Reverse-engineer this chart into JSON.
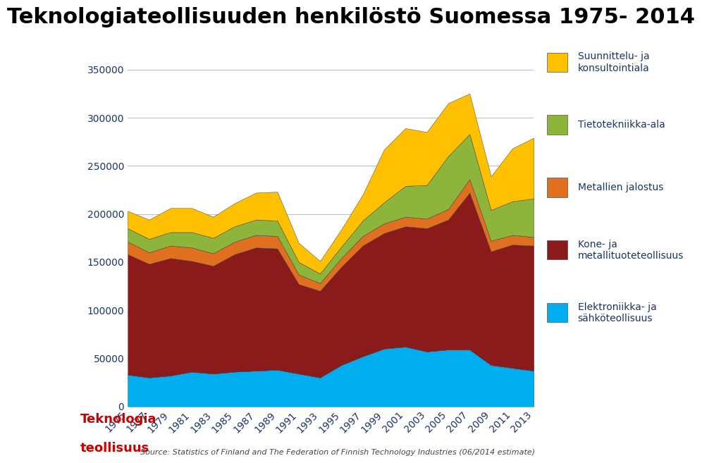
{
  "title": "Teknologiateollisuuden henkilöstö Suomessa 1975- 2014",
  "years": [
    1975,
    1977,
    1979,
    1981,
    1983,
    1985,
    1987,
    1989,
    1991,
    1993,
    1995,
    1997,
    1999,
    2001,
    2003,
    2005,
    2007,
    2009,
    2011,
    2013
  ],
  "series": {
    "Elektroniikka": [
      33000,
      30000,
      32000,
      36000,
      34000,
      36000,
      37000,
      38000,
      34000,
      30000,
      43000,
      52000,
      60000,
      62000,
      57000,
      59000,
      59000,
      43000,
      40000,
      37000
    ],
    "Kone": [
      125000,
      118000,
      122000,
      115000,
      112000,
      122000,
      128000,
      126000,
      93000,
      90000,
      102000,
      115000,
      120000,
      125000,
      128000,
      135000,
      163000,
      118000,
      128000,
      130000
    ],
    "Metallien": [
      13000,
      12000,
      13000,
      14000,
      13000,
      13000,
      13000,
      13000,
      10000,
      8000,
      9000,
      10000,
      10000,
      10000,
      10000,
      11000,
      14000,
      11000,
      10000,
      9000
    ],
    "Tietotekniikka": [
      14000,
      14000,
      14000,
      16000,
      16000,
      16000,
      16000,
      16000,
      13000,
      10000,
      12000,
      16000,
      22000,
      32000,
      35000,
      55000,
      47000,
      32000,
      35000,
      40000
    ],
    "Suunnittelu": [
      18000,
      20000,
      25000,
      25000,
      22000,
      24000,
      28000,
      30000,
      20000,
      13000,
      18000,
      27000,
      55000,
      60000,
      55000,
      55000,
      42000,
      35000,
      55000,
      63000
    ]
  },
  "colors": {
    "Elektroniikka": "#00AEEF",
    "Kone": "#8B1A1A",
    "Metallien": "#E07020",
    "Tietotekniikka": "#8DB53C",
    "Suunnittelu": "#FFC000"
  },
  "legend_labels": [
    "Suunnittelu- ja\nkonsultointiala",
    "Tietotekniikka-ala",
    "Metallien jalostus",
    "Kone- ja\nmetallituoteteollisuus",
    "Elektroniikka- ja\nsähköteollisuus"
  ],
  "legend_colors": [
    "#FFC000",
    "#8DB53C",
    "#E07020",
    "#8B1A1A",
    "#00AEEF"
  ],
  "ylim": [
    0,
    360000
  ],
  "yticks": [
    0,
    50000,
    100000,
    150000,
    200000,
    250000,
    300000,
    350000
  ],
  "source_text": "Source: Statistics of Finland and The Federation of Finnish Technology Industries (06/2014 estimate)",
  "background_color": "#FFFFFF",
  "text_color": "#1A3568",
  "title_fontsize": 22,
  "axis_fontsize": 10
}
